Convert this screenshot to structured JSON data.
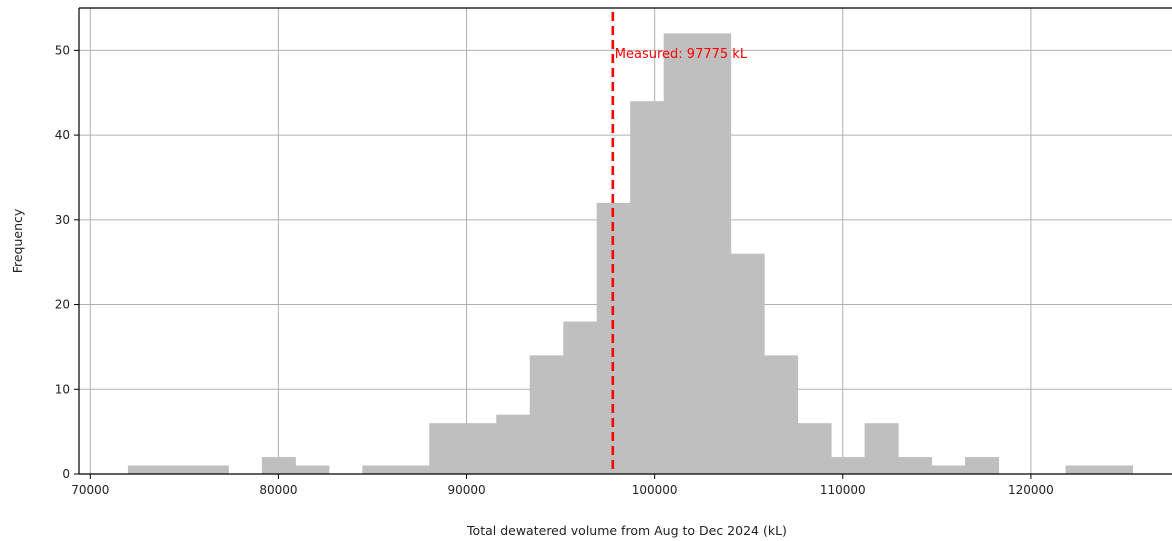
{
  "chart_data": {
    "type": "bar",
    "subtype": "histogram",
    "xlabel": "Total dewatered volume from Aug to Dec 2024 (kL)",
    "ylabel": "Frequency",
    "xlim": [
      69400,
      127500
    ],
    "ylim": [
      0,
      55
    ],
    "grid": true,
    "xticks": [
      70000,
      80000,
      90000,
      100000,
      110000,
      120000
    ],
    "yticks": [
      0,
      10,
      20,
      30,
      40,
      50
    ],
    "bar_color": "#bfbfbf",
    "bins": [
      {
        "x0": 72000,
        "x1": 73780,
        "count": 1
      },
      {
        "x0": 73780,
        "x1": 75560,
        "count": 1
      },
      {
        "x0": 75560,
        "x1": 77340,
        "count": 1
      },
      {
        "x0": 77340,
        "x1": 79120,
        "count": 0
      },
      {
        "x0": 79120,
        "x1": 80900,
        "count": 2
      },
      {
        "x0": 80900,
        "x1": 82680,
        "count": 1
      },
      {
        "x0": 82680,
        "x1": 84460,
        "count": 0
      },
      {
        "x0": 84460,
        "x1": 86240,
        "count": 1
      },
      {
        "x0": 86240,
        "x1": 88020,
        "count": 1
      },
      {
        "x0": 88020,
        "x1": 89800,
        "count": 6
      },
      {
        "x0": 89800,
        "x1": 91580,
        "count": 6
      },
      {
        "x0": 91580,
        "x1": 93360,
        "count": 7
      },
      {
        "x0": 93360,
        "x1": 95140,
        "count": 14
      },
      {
        "x0": 95140,
        "x1": 96920,
        "count": 18
      },
      {
        "x0": 96920,
        "x1": 98700,
        "count": 32
      },
      {
        "x0": 98700,
        "x1": 100480,
        "count": 44
      },
      {
        "x0": 100480,
        "x1": 102260,
        "count": 52
      },
      {
        "x0": 102260,
        "x1": 104040,
        "count": 52
      },
      {
        "x0": 104040,
        "x1": 105820,
        "count": 26
      },
      {
        "x0": 105820,
        "x1": 107600,
        "count": 14
      },
      {
        "x0": 107600,
        "x1": 109380,
        "count": 6
      },
      {
        "x0": 109380,
        "x1": 111160,
        "count": 2
      },
      {
        "x0": 111160,
        "x1": 112940,
        "count": 6
      },
      {
        "x0": 112940,
        "x1": 114720,
        "count": 2
      },
      {
        "x0": 114720,
        "x1": 116500,
        "count": 1
      },
      {
        "x0": 116500,
        "x1": 118280,
        "count": 2
      },
      {
        "x0": 118280,
        "x1": 120060,
        "count": 0
      },
      {
        "x0": 120060,
        "x1": 121840,
        "count": 0
      },
      {
        "x0": 121840,
        "x1": 123620,
        "count": 1
      },
      {
        "x0": 123620,
        "x1": 125400,
        "count": 1
      }
    ],
    "annotations": [
      {
        "type": "vline",
        "x": 97775,
        "color": "#ff0000",
        "style": "dashed",
        "label": "Measured: 97775 kL"
      }
    ]
  }
}
